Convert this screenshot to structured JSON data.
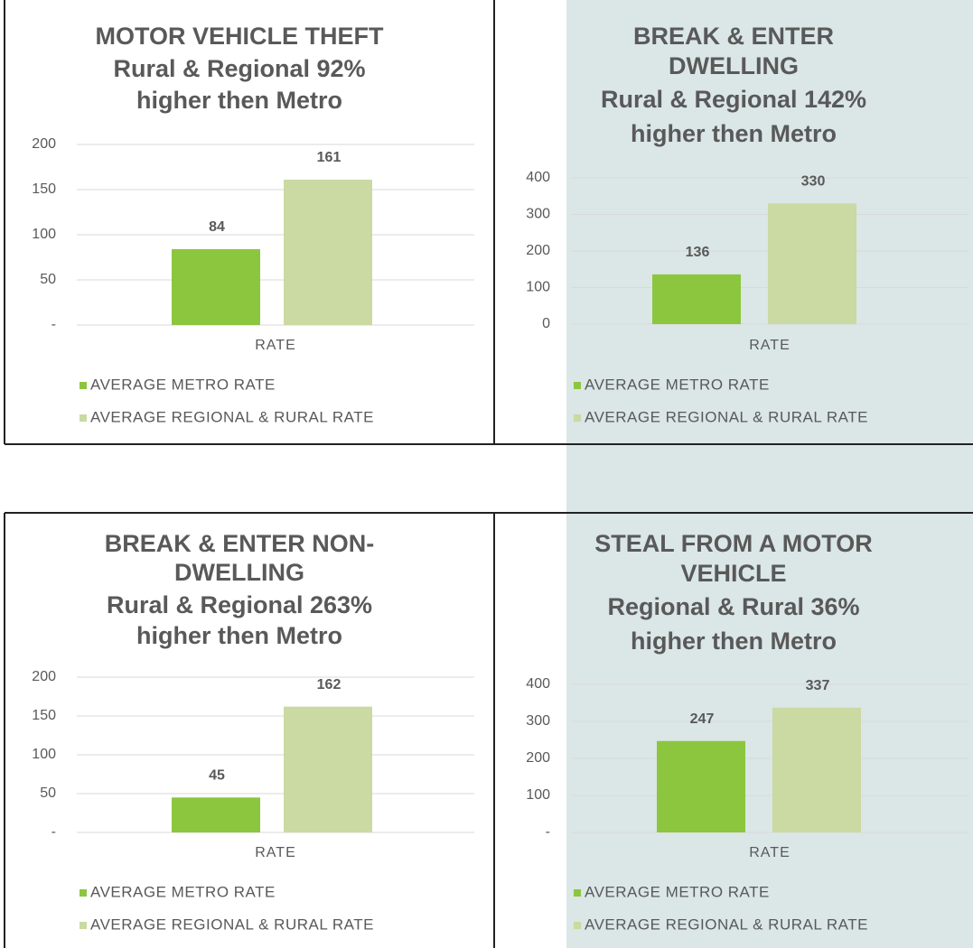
{
  "chart_data": [
    {
      "type": "bar",
      "title": [
        "MOTOR VEHICLE THEFT",
        "Rural & Regional 92%",
        "higher then Metro"
      ],
      "categories": [
        "RATE"
      ],
      "series": [
        {
          "name": "AVERAGE METRO RATE",
          "color": "#8cc63f",
          "values": [
            84
          ]
        },
        {
          "name": "AVERAGE REGIONAL & RURAL RATE",
          "color": "#cbd9a2",
          "values": [
            161
          ]
        }
      ],
      "ylim": [
        0,
        200
      ],
      "yticks": [
        {
          "value": 0,
          "label": "-"
        },
        50,
        100,
        150,
        200
      ],
      "grid": true
    },
    {
      "type": "bar",
      "title": [
        "BREAK & ENTER",
        "DWELLING",
        "Rural & Regional 142%",
        "higher then Metro"
      ],
      "categories": [
        "RATE"
      ],
      "series": [
        {
          "name": "AVERAGE METRO RATE",
          "color": "#8cc63f",
          "values": [
            136
          ]
        },
        {
          "name": "AVERAGE REGIONAL & RURAL RATE",
          "color": "#cbd9a2",
          "values": [
            330
          ]
        }
      ],
      "ylim": [
        0,
        400
      ],
      "yticks": [
        0,
        100,
        200,
        300,
        400
      ],
      "grid": true
    },
    {
      "type": "bar",
      "title": [
        "BREAK & ENTER NON-",
        "DWELLING",
        "Rural & Regional 263%",
        "higher then Metro"
      ],
      "categories": [
        "RATE"
      ],
      "series": [
        {
          "name": "AVERAGE METRO RATE",
          "color": "#8cc63f",
          "values": [
            45
          ]
        },
        {
          "name": "AVERAGE REGIONAL & RURAL RATE",
          "color": "#cbd9a2",
          "values": [
            162
          ]
        }
      ],
      "ylim": [
        0,
        200
      ],
      "yticks": [
        {
          "value": 0,
          "label": "-"
        },
        50,
        100,
        150,
        200
      ],
      "grid": true
    },
    {
      "type": "bar",
      "title": [
        "STEAL FROM A MOTOR",
        "VEHICLE",
        "Regional & Rural 36%",
        "higher then Metro"
      ],
      "categories": [
        "RATE"
      ],
      "series": [
        {
          "name": "AVERAGE METRO RATE",
          "color": "#8cc63f",
          "values": [
            247
          ]
        },
        {
          "name": "AVERAGE REGIONAL & RURAL RATE",
          "color": "#cbd9a2",
          "values": [
            337
          ]
        }
      ],
      "ylim": [
        0,
        400
      ],
      "yticks": [
        {
          "value": 0,
          "label": "-"
        },
        100,
        200,
        300,
        400
      ],
      "grid": true
    }
  ]
}
